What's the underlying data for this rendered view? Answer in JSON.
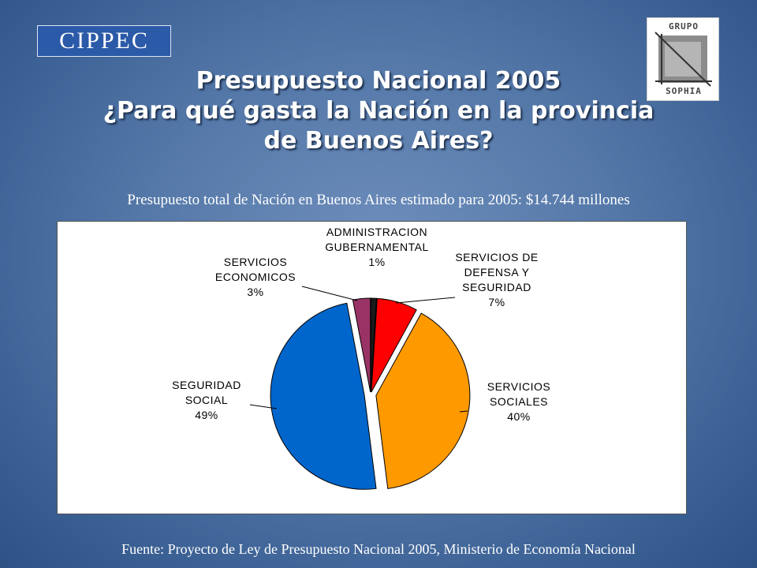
{
  "logos": {
    "cippec": "CIPPEC",
    "sophia_top": "GRUPO",
    "sophia_bottom": "SOPHIA"
  },
  "title": {
    "line1": "Presupuesto Nacional 2005",
    "line2": "¿Para qué gasta la Nación en la provincia",
    "line3": "de Buenos Aires?"
  },
  "subtitle": "Presupuesto total de Nación en Buenos Aires estimado para 2005: $14.744 millones",
  "source": "Fuente: Proyecto de Ley de Presupuesto Nacional 2005, Ministerio de Economía Nacional",
  "chart_data": {
    "type": "pie",
    "slices": [
      {
        "label": [
          "ADMINISTRACION",
          "GUBERNAMENTAL"
        ],
        "pct": "1%",
        "value": 1,
        "color": "#1a1a1a"
      },
      {
        "label": [
          "SERVICIOS DE",
          "DEFENSA Y",
          "SEGURIDAD"
        ],
        "pct": "7%",
        "value": 7,
        "color": "#ff0000"
      },
      {
        "label": [
          "SERVICIOS",
          "SOCIALES"
        ],
        "pct": "40%",
        "value": 40,
        "color": "#ff9900"
      },
      {
        "label": [
          "SEGURIDAD",
          "SOCIAL"
        ],
        "pct": "49%",
        "value": 49,
        "color": "#0066cc"
      },
      {
        "label": [
          "SERVICIOS",
          "ECONOMICOS"
        ],
        "pct": "3%",
        "value": 3,
        "color": "#993366"
      }
    ]
  }
}
